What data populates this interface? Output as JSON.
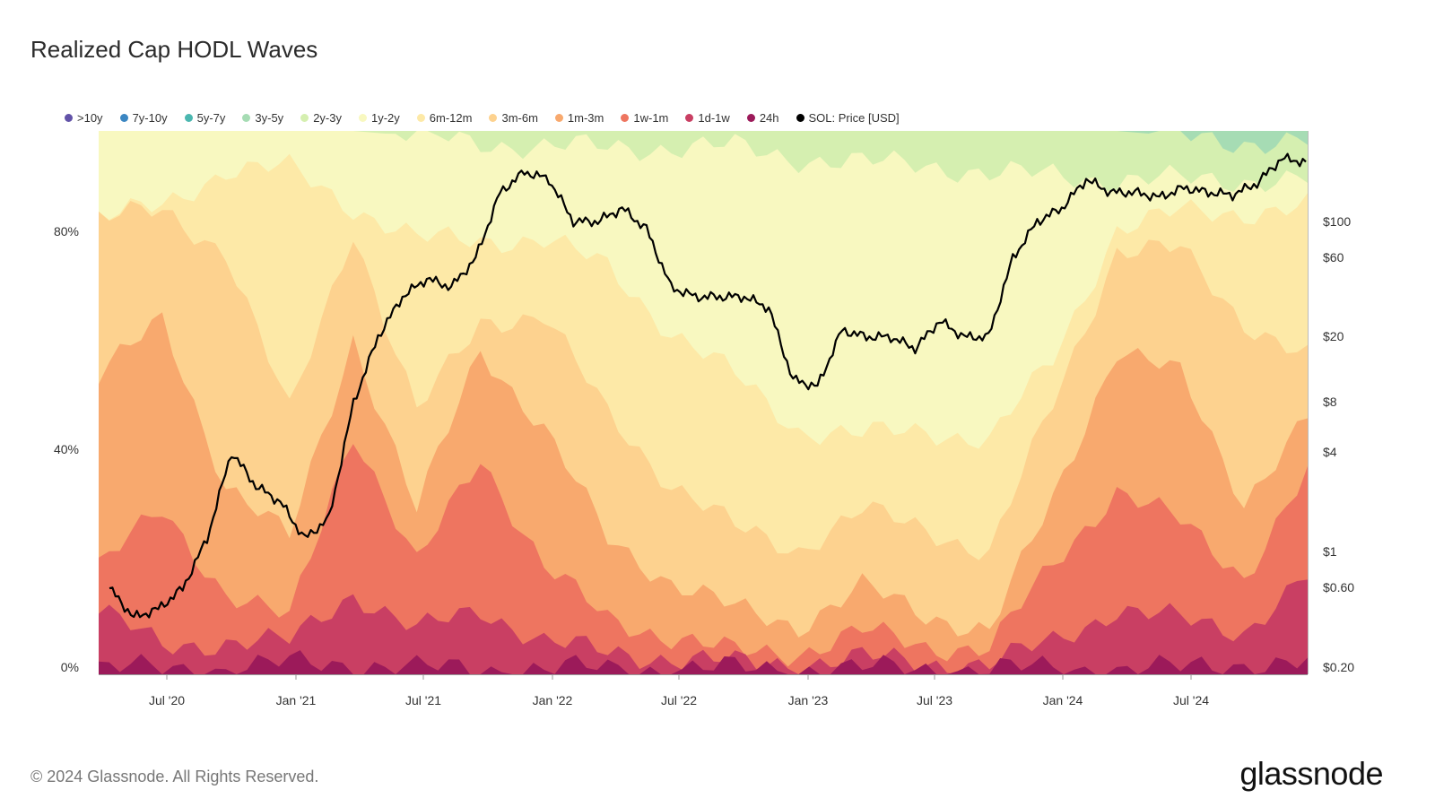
{
  "page": {
    "title": "Realized Cap HODL Waves",
    "footer": "© 2024 Glassnode. All Rights Reserved.",
    "brand": "glassnode"
  },
  "chart_data": {
    "type": "area",
    "title": "Realized Cap HODL Waves",
    "stacked": true,
    "x_start": "2020-04",
    "x_end": "2024-12",
    "x_ticks": [
      "Jul '20",
      "Jan '21",
      "Jul '21",
      "Jan '22",
      "Jul '22",
      "Jan '23",
      "Jul '23",
      "Jan '24",
      "Jul '24"
    ],
    "y_left_ticks": [
      "80%",
      "40%",
      "0%"
    ],
    "y_left_range": [
      0,
      100
    ],
    "y_right_ticks": [
      "$100",
      "$60",
      "$20",
      "$8",
      "$4",
      "$1",
      "$0.60",
      "$0.20"
    ],
    "y_right_scale": "log",
    "legend_position": "top-left",
    "x_points": [
      "Apr '20",
      "Jul '20",
      "Oct '20",
      "Jan '21",
      "Apr '21",
      "Jul '21",
      "Oct '21",
      "Jan '22",
      "Apr '22",
      "Jul '22",
      "Oct '22",
      "Jan '23",
      "Apr '23",
      "Jul '23",
      "Oct '23",
      "Jan '24",
      "Apr '24",
      "Jul '24",
      "Oct '24",
      "Dec '24"
    ],
    "series": [
      {
        "name": "24h",
        "color": "#9c1a5a",
        "values": [
          1,
          1,
          1,
          2,
          2,
          1,
          1,
          1,
          1,
          1,
          1,
          1,
          1,
          1,
          1,
          1,
          1,
          1,
          2,
          2
        ]
      },
      {
        "name": "1d-1w",
        "color": "#c93f63",
        "values": [
          12,
          5,
          6,
          6,
          15,
          8,
          12,
          6,
          4,
          3,
          2,
          2,
          3,
          2,
          2,
          6,
          12,
          10,
          8,
          18
        ]
      },
      {
        "name": "1w-1m",
        "color": "#ee7560",
        "values": [
          20,
          30,
          15,
          10,
          45,
          20,
          40,
          20,
          10,
          7,
          4,
          4,
          8,
          5,
          5,
          20,
          34,
          28,
          18,
          37
        ]
      },
      {
        "name": "1m-3m",
        "color": "#f8a96e",
        "values": [
          55,
          65,
          35,
          25,
          62,
          30,
          60,
          45,
          25,
          17,
          12,
          9,
          16,
          11,
          8,
          32,
          60,
          55,
          32,
          47
        ]
      },
      {
        "name": "3m-6m",
        "color": "#fdd28f",
        "values": [
          84,
          85,
          78,
          48,
          82,
          48,
          65,
          66,
          48,
          35,
          27,
          23,
          30,
          27,
          22,
          50,
          78,
          78,
          65,
          58
        ]
      },
      {
        "name": "6m-12m",
        "color": "#fde9a7",
        "values": [
          84,
          86,
          93,
          93,
          86,
          80,
          80,
          80,
          75,
          63,
          55,
          45,
          44,
          45,
          43,
          58,
          82,
          85,
          85,
          86
        ]
      },
      {
        "name": "1y-2y",
        "color": "#f8f8c0",
        "values": [
          100,
          100,
          100,
          100,
          100,
          99,
          98,
          97,
          97,
          97,
          97,
          95,
          94,
          94,
          92,
          92,
          91,
          91,
          91,
          91
        ]
      },
      {
        "name": "2y-3y",
        "color": "#d5efb0",
        "values": [
          100,
          100,
          100,
          100,
          100,
          100,
          100,
          100,
          100,
          100,
          100,
          100,
          100,
          100,
          100,
          100,
          100,
          99,
          98,
          98
        ]
      },
      {
        "name": "3y-5y",
        "color": "#a6dcb4",
        "values": [
          100,
          100,
          100,
          100,
          100,
          100,
          100,
          100,
          100,
          100,
          100,
          100,
          100,
          100,
          100,
          100,
          100,
          100,
          100,
          100
        ]
      },
      {
        "name": "5y-7y",
        "color": "#4bb7b0",
        "values": [
          100,
          100,
          100,
          100,
          100,
          100,
          100,
          100,
          100,
          100,
          100,
          100,
          100,
          100,
          100,
          100,
          100,
          100,
          100,
          100
        ]
      },
      {
        "name": "7y-10y",
        "color": "#3b86c2",
        "values": [
          100,
          100,
          100,
          100,
          100,
          100,
          100,
          100,
          100,
          100,
          100,
          100,
          100,
          100,
          100,
          100,
          100,
          100,
          100,
          100
        ]
      },
      {
        "name": ">10y",
        "color": "#6253a8",
        "values": [
          100,
          100,
          100,
          100,
          100,
          100,
          100,
          100,
          100,
          100,
          100,
          100,
          100,
          100,
          100,
          100,
          100,
          100,
          100,
          100
        ]
      }
    ],
    "legend": [
      {
        "name": ">10y",
        "color": "#6253a8"
      },
      {
        "name": "7y-10y",
        "color": "#3b86c2"
      },
      {
        "name": "5y-7y",
        "color": "#4bb7b0"
      },
      {
        "name": "3y-5y",
        "color": "#a6dcb4"
      },
      {
        "name": "2y-3y",
        "color": "#d5efb0"
      },
      {
        "name": "1y-2y",
        "color": "#f8f8c0"
      },
      {
        "name": "6m-12m",
        "color": "#fde9a7"
      },
      {
        "name": "3m-6m",
        "color": "#fdd28f"
      },
      {
        "name": "1m-3m",
        "color": "#f8a96e"
      },
      {
        "name": "1w-1m",
        "color": "#ee7560"
      },
      {
        "name": "1d-1w",
        "color": "#c93f63"
      },
      {
        "name": "24h",
        "color": "#9c1a5a"
      },
      {
        "name": "SOL: Price [USD]",
        "color": "#000000"
      }
    ],
    "price_series": {
      "name": "SOL: Price [USD]",
      "color": "#000000",
      "values": [
        0.6,
        0.4,
        0.45,
        0.6,
        1.2,
        4.0,
        2.5,
        2.0,
        1.2,
        1.6,
        8,
        20,
        35,
        45,
        40,
        60,
        150,
        200,
        180,
        100,
        100,
        120,
        90,
        40,
        35,
        35,
        35,
        30,
        11,
        10,
        22,
        20,
        20,
        17,
        25,
        20,
        20,
        60,
        100,
        120,
        180,
        150,
        150,
        140,
        160,
        150,
        145,
        170,
        240,
        230
      ]
    }
  }
}
